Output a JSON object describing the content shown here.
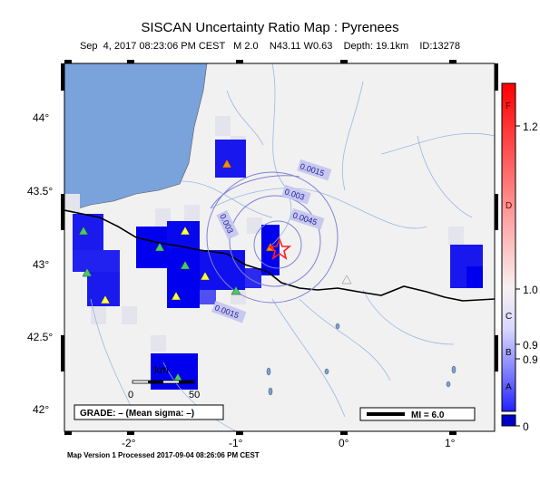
{
  "header": {
    "title": "SISCAN Uncertainty Ratio Map : Pyrenees",
    "subtitle": "Sep  4, 2017 08:23:06 PM CEST   M 2.0    N43.11 W0.63    Depth: 19.1km    ID:13278"
  },
  "map": {
    "x_ticks": [
      "-2°",
      "-1°",
      "0°",
      "1°"
    ],
    "y_ticks": [
      "44°",
      "43.5°",
      "43°",
      "42.5°",
      "42°"
    ],
    "contour_labels": [
      "0.0015",
      "0.003",
      "0.0045",
      "0.003",
      "0.0015"
    ],
    "scale_bar": {
      "unit": "km",
      "start": "0",
      "end": "50"
    },
    "grade_label": "GRADE: – (Mean sigma: –)",
    "magnitude_legend": "MI = 6.0",
    "colors": {
      "sea": "#7aa3dc",
      "land": "#f1f1f1",
      "high": "#0000ee",
      "epicenter": "#ff2020"
    }
  },
  "colorbar": {
    "grade_letters": [
      "F",
      "D",
      "C",
      "B",
      "A"
    ],
    "values": [
      "1.2",
      "1.0",
      "0.9",
      "0.9",
      "0"
    ]
  },
  "footer": {
    "text": "Map Version 1 Processed 2017-09-04 08:26:06 PM CEST"
  }
}
